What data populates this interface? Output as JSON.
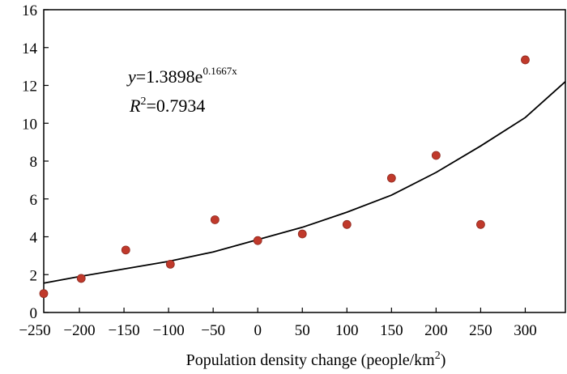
{
  "chart_data": {
    "type": "scatter",
    "xlabel": "Population density change (people/km",
    "xlabel_sup": "2",
    "xlabel_end": ")",
    "ylabel": "",
    "xlim": [
      -240,
      345
    ],
    "ylim": [
      0,
      16
    ],
    "x_ticks": [
      -250,
      -200,
      -150,
      -100,
      -50,
      0,
      50,
      100,
      150,
      200,
      250,
      300
    ],
    "x_tick_labels": [
      "−250",
      "−200",
      "−150",
      "−100",
      "−50",
      "0",
      "50",
      "100",
      "150",
      "200",
      "250",
      "300"
    ],
    "y_ticks": [
      0,
      2,
      4,
      6,
      8,
      10,
      12,
      14,
      16
    ],
    "y_tick_labels": [
      "0",
      "2",
      "4",
      "6",
      "8",
      "10",
      "12",
      "14",
      "16"
    ],
    "points": [
      {
        "x": -240,
        "y": 1.0
      },
      {
        "x": -198,
        "y": 1.8
      },
      {
        "x": -148,
        "y": 3.3
      },
      {
        "x": -98,
        "y": 2.55
      },
      {
        "x": -48,
        "y": 4.9
      },
      {
        "x": 0,
        "y": 3.8
      },
      {
        "x": 50,
        "y": 4.15
      },
      {
        "x": 100,
        "y": 4.65
      },
      {
        "x": 150,
        "y": 7.1
      },
      {
        "x": 200,
        "y": 8.3
      },
      {
        "x": 250,
        "y": 4.65
      },
      {
        "x": 300,
        "y": 13.35
      }
    ],
    "trendline": {
      "type": "exponential",
      "equation_prefix": "y",
      "equation_eq": "=1.3898e",
      "equation_exp": "0.1667x",
      "r2_prefix": "R",
      "r2_sup": "2",
      "r2_value": "=0.7934",
      "curve_samples": [
        {
          "x": -240,
          "y": 1.55
        },
        {
          "x": -200,
          "y": 1.9
        },
        {
          "x": -150,
          "y": 2.3
        },
        {
          "x": -100,
          "y": 2.7
        },
        {
          "x": -50,
          "y": 3.2
        },
        {
          "x": 0,
          "y": 3.85
        },
        {
          "x": 50,
          "y": 4.5
        },
        {
          "x": 100,
          "y": 5.3
        },
        {
          "x": 150,
          "y": 6.2
        },
        {
          "x": 200,
          "y": 7.4
        },
        {
          "x": 250,
          "y": 8.8
        },
        {
          "x": 300,
          "y": 10.3
        },
        {
          "x": 345,
          "y": 12.2
        }
      ]
    },
    "grid": false,
    "colors": {
      "point": "#c0392b",
      "point_edge": "#8e2a20",
      "line": "#000000",
      "axis": "#000000"
    }
  }
}
